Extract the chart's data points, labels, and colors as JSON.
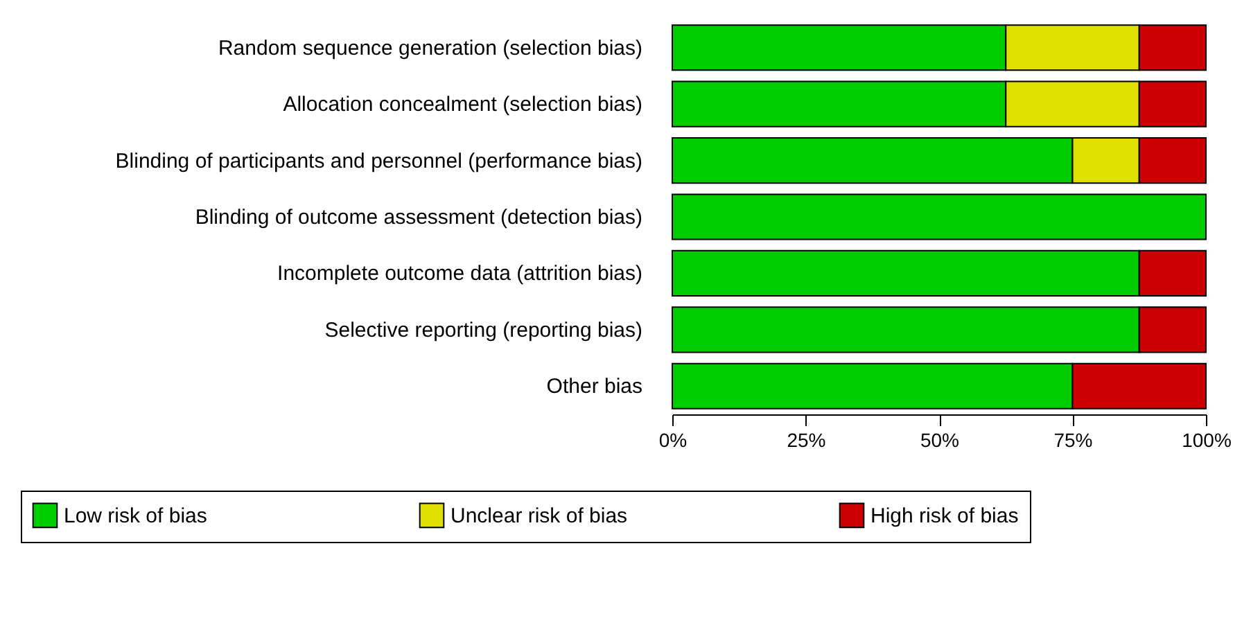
{
  "chart_data": {
    "type": "bar",
    "orientation": "horizontal",
    "stacked": true,
    "categories": [
      "Random sequence generation (selection bias)",
      "Allocation concealment (selection bias)",
      "Blinding of participants and personnel (performance bias)",
      "Blinding of outcome assessment (detection bias)",
      "Incomplete outcome data (attrition bias)",
      "Selective reporting (reporting bias)",
      "Other bias"
    ],
    "series": [
      {
        "name": "Low risk of bias",
        "color": "#00cc00",
        "values": [
          62.5,
          62.5,
          75,
          100,
          87.5,
          87.5,
          75
        ]
      },
      {
        "name": "Unclear risk of bias",
        "color": "#e0e000",
        "values": [
          25,
          25,
          12.5,
          0,
          0,
          0,
          0
        ]
      },
      {
        "name": "High risk of bias",
        "color": "#cc0000",
        "values": [
          12.5,
          12.5,
          12.5,
          0,
          12.5,
          12.5,
          25
        ]
      }
    ],
    "xlim": [
      0,
      100
    ],
    "xticks": [
      {
        "value": 0,
        "label": "0%"
      },
      {
        "value": 25,
        "label": "25%"
      },
      {
        "value": 50,
        "label": "50%"
      },
      {
        "value": 75,
        "label": "75%"
      },
      {
        "value": 100,
        "label": "100%"
      }
    ],
    "grid": false,
    "legend": "bottom"
  }
}
